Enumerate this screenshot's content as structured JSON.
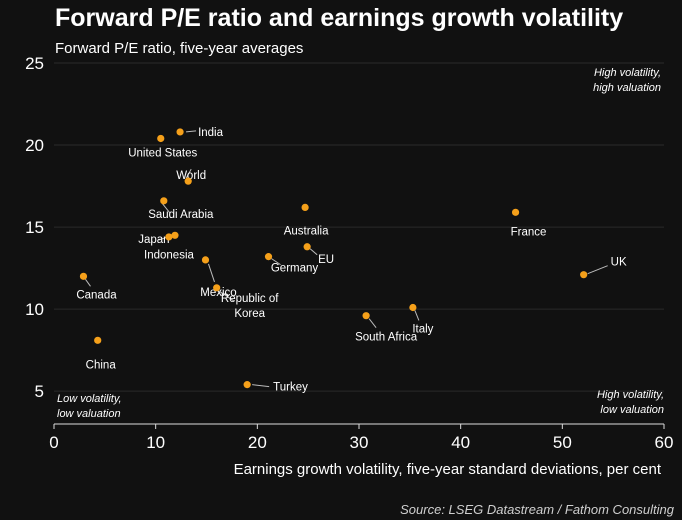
{
  "colors": {
    "background": "#111111",
    "marker": "#f5a01a",
    "grid": "#2a2a2a",
    "text": "#ffffff",
    "source": "#cfcfcf"
  },
  "chart_data": {
    "type": "scatter",
    "title": "Forward P/E ratio and earnings growth volatility",
    "subtitle": "Forward P/E ratio, five-year averages",
    "xlabel": "Earnings growth volatility, five-year standard deviations, per cent",
    "ylabel": "",
    "xlim": [
      0,
      60
    ],
    "ylim": [
      3,
      25
    ],
    "xticks": [
      "0",
      "10",
      "20",
      "30",
      "40",
      "50",
      "60"
    ],
    "yticks": [
      "5",
      "10",
      "15",
      "20",
      "25"
    ],
    "grid": true,
    "source": "Source: LSEG Datastream / Fathom Consulting",
    "quadrant_labels": {
      "top_right": [
        "High volatility,",
        "high valuation"
      ],
      "bottom_left": [
        "Low volatility,",
        "low valuation"
      ],
      "bottom_right": [
        "High volatility,",
        "low valuation"
      ]
    },
    "points": [
      {
        "label": [
          "India"
        ],
        "x": 12.4,
        "y": 20.8
      },
      {
        "label": [
          "United States"
        ],
        "x": 10.5,
        "y": 20.4
      },
      {
        "label": [
          "World"
        ],
        "x": 13.2,
        "y": 17.8
      },
      {
        "label": [
          "Saudi Arabia"
        ],
        "x": 10.8,
        "y": 16.6
      },
      {
        "label": [
          "Australia"
        ],
        "x": 24.7,
        "y": 16.2
      },
      {
        "label": [
          "France"
        ],
        "x": 45.4,
        "y": 15.9
      },
      {
        "label": [
          "Japan"
        ],
        "x": 11.3,
        "y": 14.4
      },
      {
        "label": [
          "Indonesia"
        ],
        "x": 11.9,
        "y": 14.5
      },
      {
        "label": [
          "EU"
        ],
        "x": 24.9,
        "y": 13.8
      },
      {
        "label": [
          "Germany"
        ],
        "x": 21.1,
        "y": 13.2
      },
      {
        "label": [
          "Mexico"
        ],
        "x": 14.9,
        "y": 13.0
      },
      {
        "label": [
          "UK"
        ],
        "x": 52.1,
        "y": 12.1
      },
      {
        "label": [
          "Canada"
        ],
        "x": 2.9,
        "y": 12.0
      },
      {
        "label": [
          "Republic of",
          "Korea"
        ],
        "x": 16.0,
        "y": 11.3
      },
      {
        "label": [
          "Italy"
        ],
        "x": 35.3,
        "y": 10.1
      },
      {
        "label": [
          "South Africa"
        ],
        "x": 30.7,
        "y": 9.6
      },
      {
        "label": [
          "China"
        ],
        "x": 4.3,
        "y": 8.1
      },
      {
        "label": [
          "Turkey"
        ],
        "x": 19.0,
        "y": 5.4
      }
    ]
  }
}
